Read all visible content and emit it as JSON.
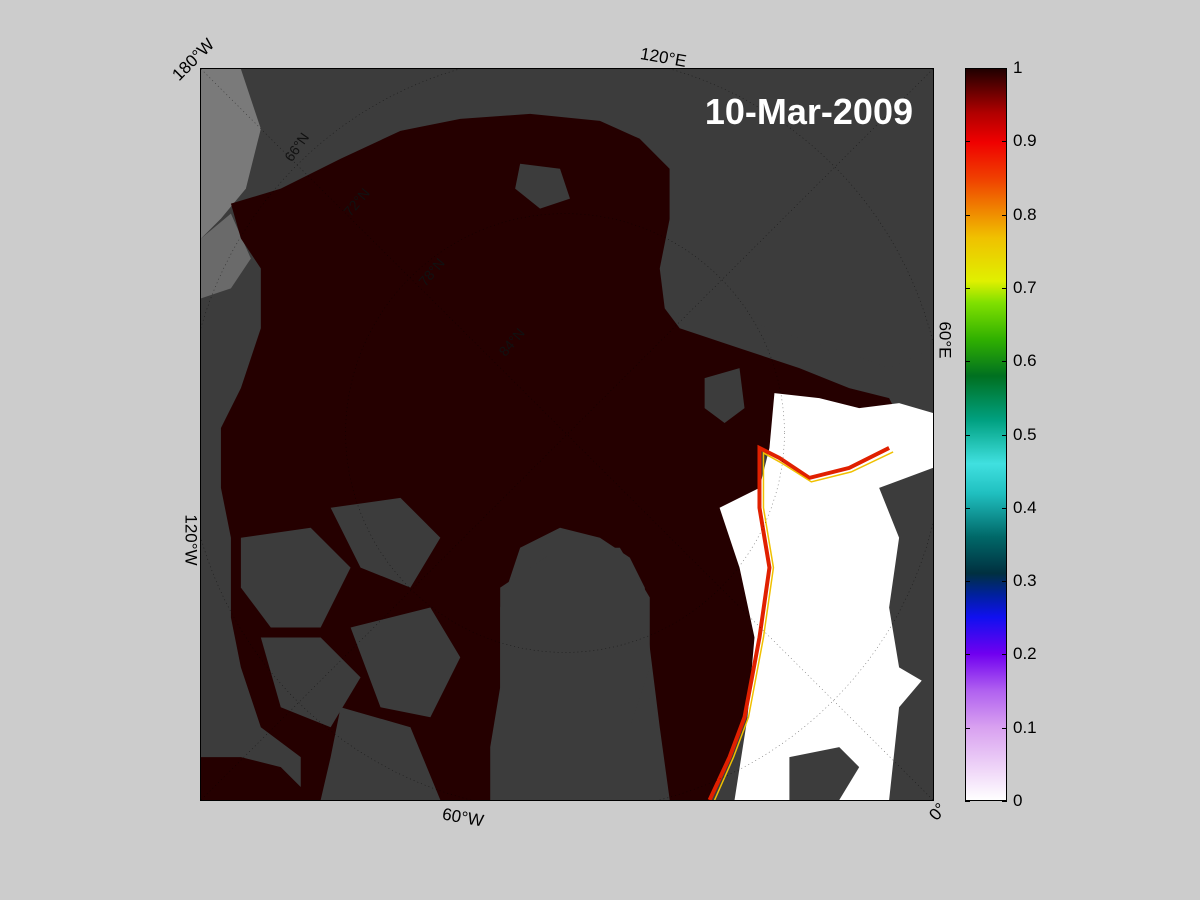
{
  "title": "10-Mar-2009",
  "longitude_labels": {
    "lon_180w": "180°W",
    "lon_120e": "120°E",
    "lon_60e": "60°E",
    "lon_120w": "120°W",
    "lon_60w": "60°W",
    "lon_0": "0°"
  },
  "latitude_labels": [
    "66°N",
    "72°N",
    "78°N",
    "84°N"
  ],
  "colorbar": {
    "ticks": [
      "0",
      "0.1",
      "0.2",
      "0.3",
      "0.4",
      "0.5",
      "0.6",
      "0.7",
      "0.8",
      "0.9",
      "1"
    ],
    "range": [
      0,
      1
    ]
  },
  "colors": {
    "background": "#cccccc",
    "land": "#3c3c3c",
    "ice_full": "#250000",
    "open_water": "#ffffff"
  }
}
